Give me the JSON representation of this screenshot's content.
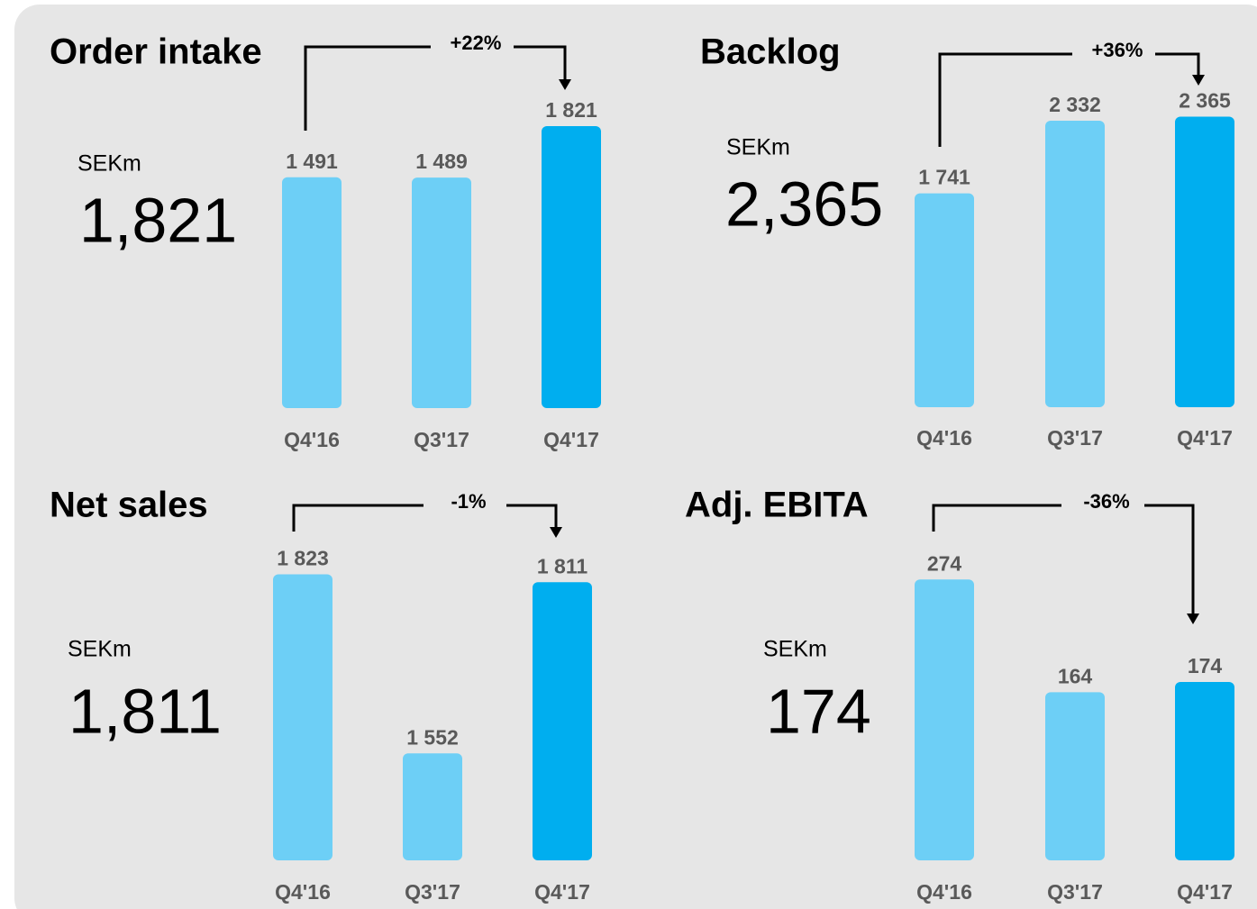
{
  "chart_data": [
    {
      "type": "bar",
      "title": "Order intake",
      "unit": "SEKm",
      "headline": "1,821",
      "change": "+22%",
      "categories": [
        "Q4'16",
        "Q3'17",
        "Q4'17"
      ],
      "values": [
        1491,
        1489,
        1821
      ],
      "value_labels": [
        "1 491",
        "1 489",
        "1 821"
      ],
      "colors": [
        "#6dcff6",
        "#6dcff6",
        "#00aeef"
      ],
      "ylim": [
        0,
        1920
      ]
    },
    {
      "type": "bar",
      "title": "Backlog",
      "unit": "SEKm",
      "headline": "2,365",
      "change": "+36%",
      "categories": [
        "Q4'16",
        "Q3'17",
        "Q4'17"
      ],
      "values": [
        1741,
        2332,
        2365
      ],
      "value_labels": [
        "1 741",
        "2 332",
        "2 365"
      ],
      "colors": [
        "#6dcff6",
        "#6dcff6",
        "#00aeef"
      ],
      "ylim": [
        0,
        2420
      ]
    },
    {
      "type": "bar",
      "title": "Net sales",
      "unit": "SEKm",
      "headline": "1,811",
      "change": "-1%",
      "categories": [
        "Q4'16",
        "Q3'17",
        "Q4'17"
      ],
      "values": [
        1823,
        1552,
        1811
      ],
      "value_labels": [
        "1 823",
        "1 552",
        "1 811"
      ],
      "colors": [
        "#6dcff6",
        "#6dcff6",
        "#00aeef"
      ],
      "ylim": [
        1390,
        1840
      ]
    },
    {
      "type": "bar",
      "title": "Adj. EBITA",
      "unit": "SEKm",
      "headline": "174",
      "change": "-36%",
      "categories": [
        "Q4'16",
        "Q3'17",
        "Q4'17"
      ],
      "values": [
        274,
        164,
        174
      ],
      "colors": [
        "#6dcff6",
        "#6dcff6",
        "#00aeef"
      ],
      "ylim": [
        0,
        290
      ]
    }
  ]
}
